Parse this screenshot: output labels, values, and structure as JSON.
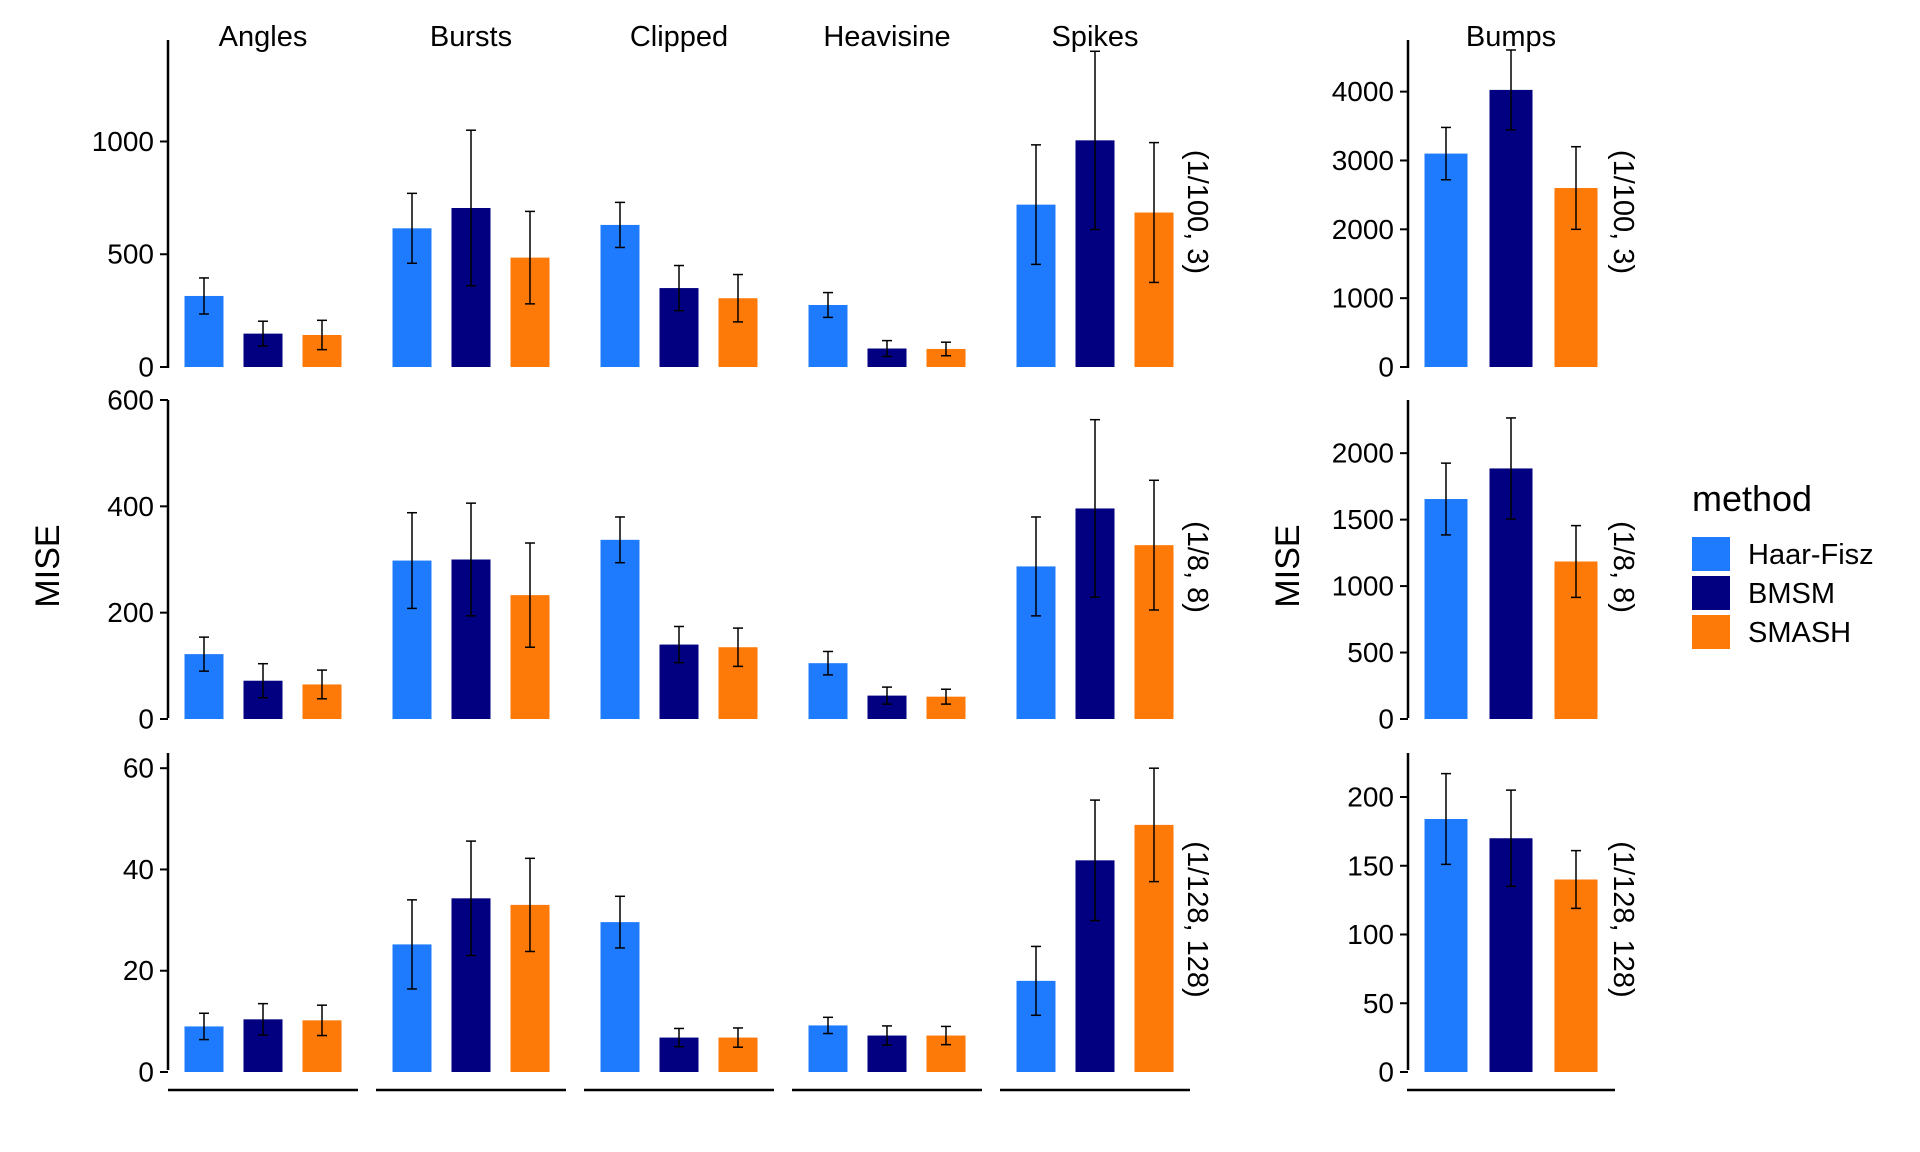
{
  "chart_data": [
    {
      "type": "bar",
      "panel": "left",
      "ylabel": "MISE",
      "facets": [
        "Angles",
        "Bursts",
        "Clipped",
        "Heavisine",
        "Spikes"
      ],
      "methods": [
        "Haar-Fisz",
        "BMSM",
        "SMASH"
      ],
      "rows": [
        {
          "label": "(1/100, 3)",
          "ylim": [
            0,
            1450
          ],
          "yticks": [
            0,
            500,
            1000
          ],
          "values": [
            [
              315,
              148,
              142
            ],
            [
              615,
              705,
              485
            ],
            [
              630,
              350,
              305
            ],
            [
              275,
              82,
              80
            ],
            [
              720,
              1005,
              685
            ]
          ],
          "errors": [
            [
              80,
              55,
              65
            ],
            [
              155,
              345,
              205
            ],
            [
              100,
              100,
              105
            ],
            [
              55,
              35,
              30
            ],
            [
              265,
              395,
              310
            ]
          ]
        },
        {
          "label": "(1/8, 8)",
          "ylim": [
            0,
            600
          ],
          "yticks": [
            0,
            200,
            400,
            600
          ],
          "values": [
            [
              122,
              72,
              65
            ],
            [
              298,
              300,
              233
            ],
            [
              337,
              140,
              135
            ],
            [
              105,
              44,
              42
            ],
            [
              287,
              396,
              327
            ]
          ],
          "errors": [
            [
              32,
              32,
              27
            ],
            [
              90,
              106,
              98
            ],
            [
              43,
              34,
              36
            ],
            [
              22,
              16,
              14
            ],
            [
              93,
              167,
              122
            ]
          ]
        },
        {
          "label": "(1/128, 128)",
          "ylim": [
            0,
            63
          ],
          "yticks": [
            0,
            20,
            40,
            60
          ],
          "values": [
            [
              9,
              10.4,
              10.2
            ],
            [
              25.2,
              34.3,
              33
            ],
            [
              29.6,
              6.8,
              6.8
            ],
            [
              9.2,
              7.2,
              7.2
            ],
            [
              18,
              41.8,
              48.8
            ]
          ],
          "errors": [
            [
              2.6,
              3.1,
              3
            ],
            [
              8.8,
              11.3,
              9.2
            ],
            [
              5.1,
              1.8,
              1.9
            ],
            [
              1.6,
              1.9,
              1.8
            ],
            [
              6.8,
              11.9,
              11.2
            ]
          ]
        }
      ]
    },
    {
      "type": "bar",
      "panel": "right",
      "ylabel": "MISE",
      "facets": [
        "Bumps"
      ],
      "methods": [
        "Haar-Fisz",
        "BMSM",
        "SMASH"
      ],
      "rows": [
        {
          "label": "(1/100, 3)",
          "ylim": [
            0,
            4750
          ],
          "yticks": [
            0,
            1000,
            2000,
            3000,
            4000
          ],
          "values": [
            [
              3100,
              4025,
              2600
            ]
          ],
          "errors": [
            [
              380,
              580,
              600
            ]
          ]
        },
        {
          "label": "(1/8, 8)",
          "ylim": [
            0,
            2400
          ],
          "yticks": [
            0,
            500,
            1000,
            1500,
            2000
          ],
          "values": [
            [
              1655,
              1885,
              1185
            ]
          ],
          "errors": [
            [
              270,
              380,
              270
            ]
          ]
        },
        {
          "label": "(1/128, 128)",
          "ylim": [
            0,
            232
          ],
          "yticks": [
            0,
            50,
            100,
            150,
            200
          ],
          "values": [
            [
              184,
              170,
              140
            ]
          ],
          "errors": [
            [
              33,
              35,
              21
            ]
          ]
        }
      ]
    }
  ],
  "legend": {
    "title": "method",
    "items": [
      {
        "label": "Haar-Fisz",
        "color": "#1F7BFE"
      },
      {
        "label": "BMSM",
        "color": "#020080"
      },
      {
        "label": "SMASH",
        "color": "#FE7A08"
      }
    ]
  }
}
